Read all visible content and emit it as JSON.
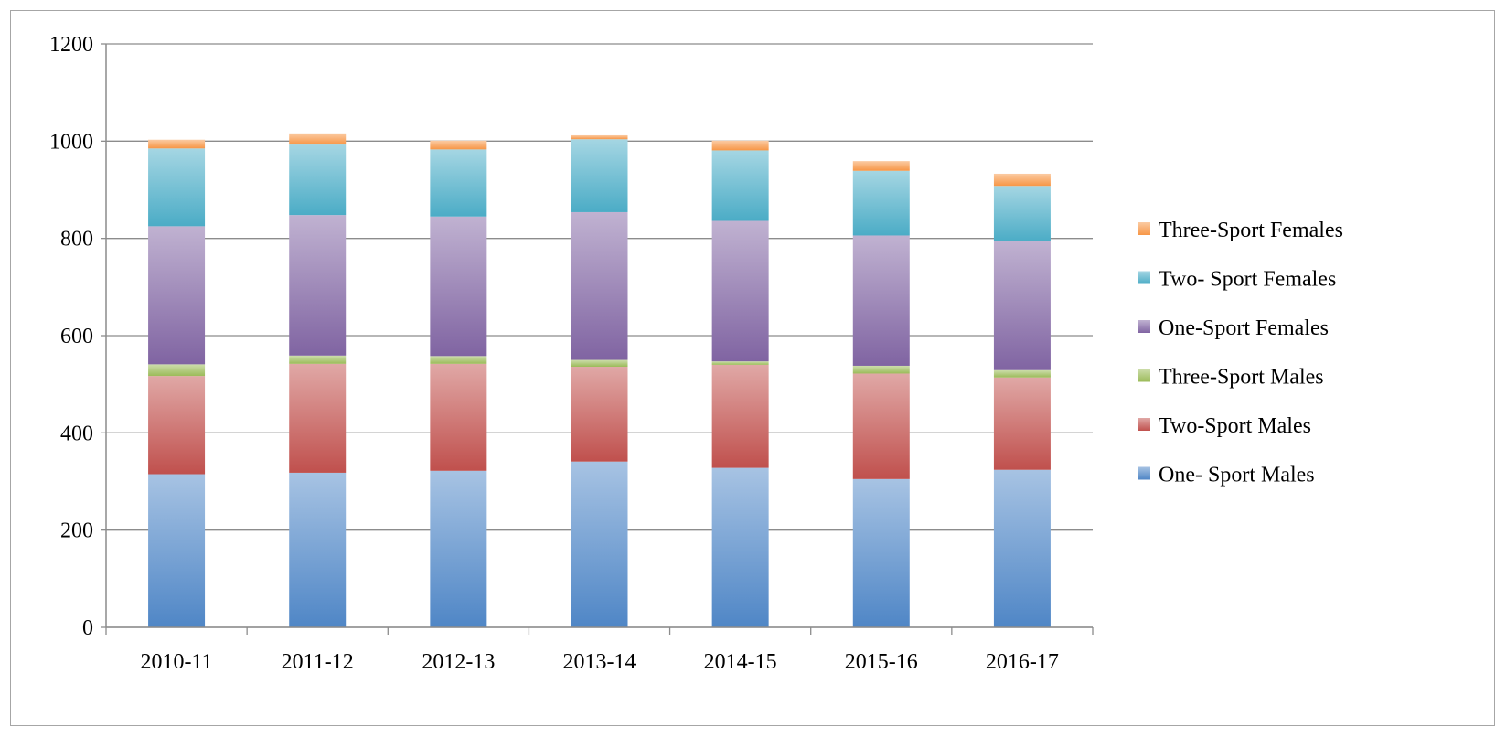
{
  "chart_data": {
    "type": "bar",
    "stacked": true,
    "title": "",
    "xlabel": "",
    "ylabel": "",
    "ylim": [
      0,
      1200
    ],
    "yticks": [
      0,
      200,
      400,
      600,
      800,
      1000,
      1200
    ],
    "grid": true,
    "legend_position": "right",
    "categories": [
      "2010-11",
      "2011-12",
      "2012-13",
      "2013-14",
      "2014-15",
      "2015-16",
      "2016-17"
    ],
    "series": [
      {
        "name": "One- Sport Males",
        "color": "#4f86c6",
        "values": [
          315,
          318,
          322,
          341,
          328,
          305,
          324
        ]
      },
      {
        "name": "Two-Sport Males",
        "color": "#c0504d",
        "values": [
          202,
          224,
          220,
          195,
          212,
          217,
          190
        ]
      },
      {
        "name": "Three-Sport Males",
        "color": "#9bbb59",
        "values": [
          24,
          17,
          16,
          14,
          7,
          16,
          15
        ]
      },
      {
        "name": "One-Sport Females",
        "color": "#8064a2",
        "values": [
          284,
          289,
          287,
          304,
          289,
          268,
          265
        ]
      },
      {
        "name": "Two- Sport Females",
        "color": "#4bacc6",
        "values": [
          160,
          145,
          138,
          150,
          145,
          133,
          114
        ]
      },
      {
        "name": "Three-Sport Females",
        "color": "#f79646",
        "values": [
          18,
          23,
          18,
          8,
          20,
          20,
          25
        ]
      }
    ]
  }
}
